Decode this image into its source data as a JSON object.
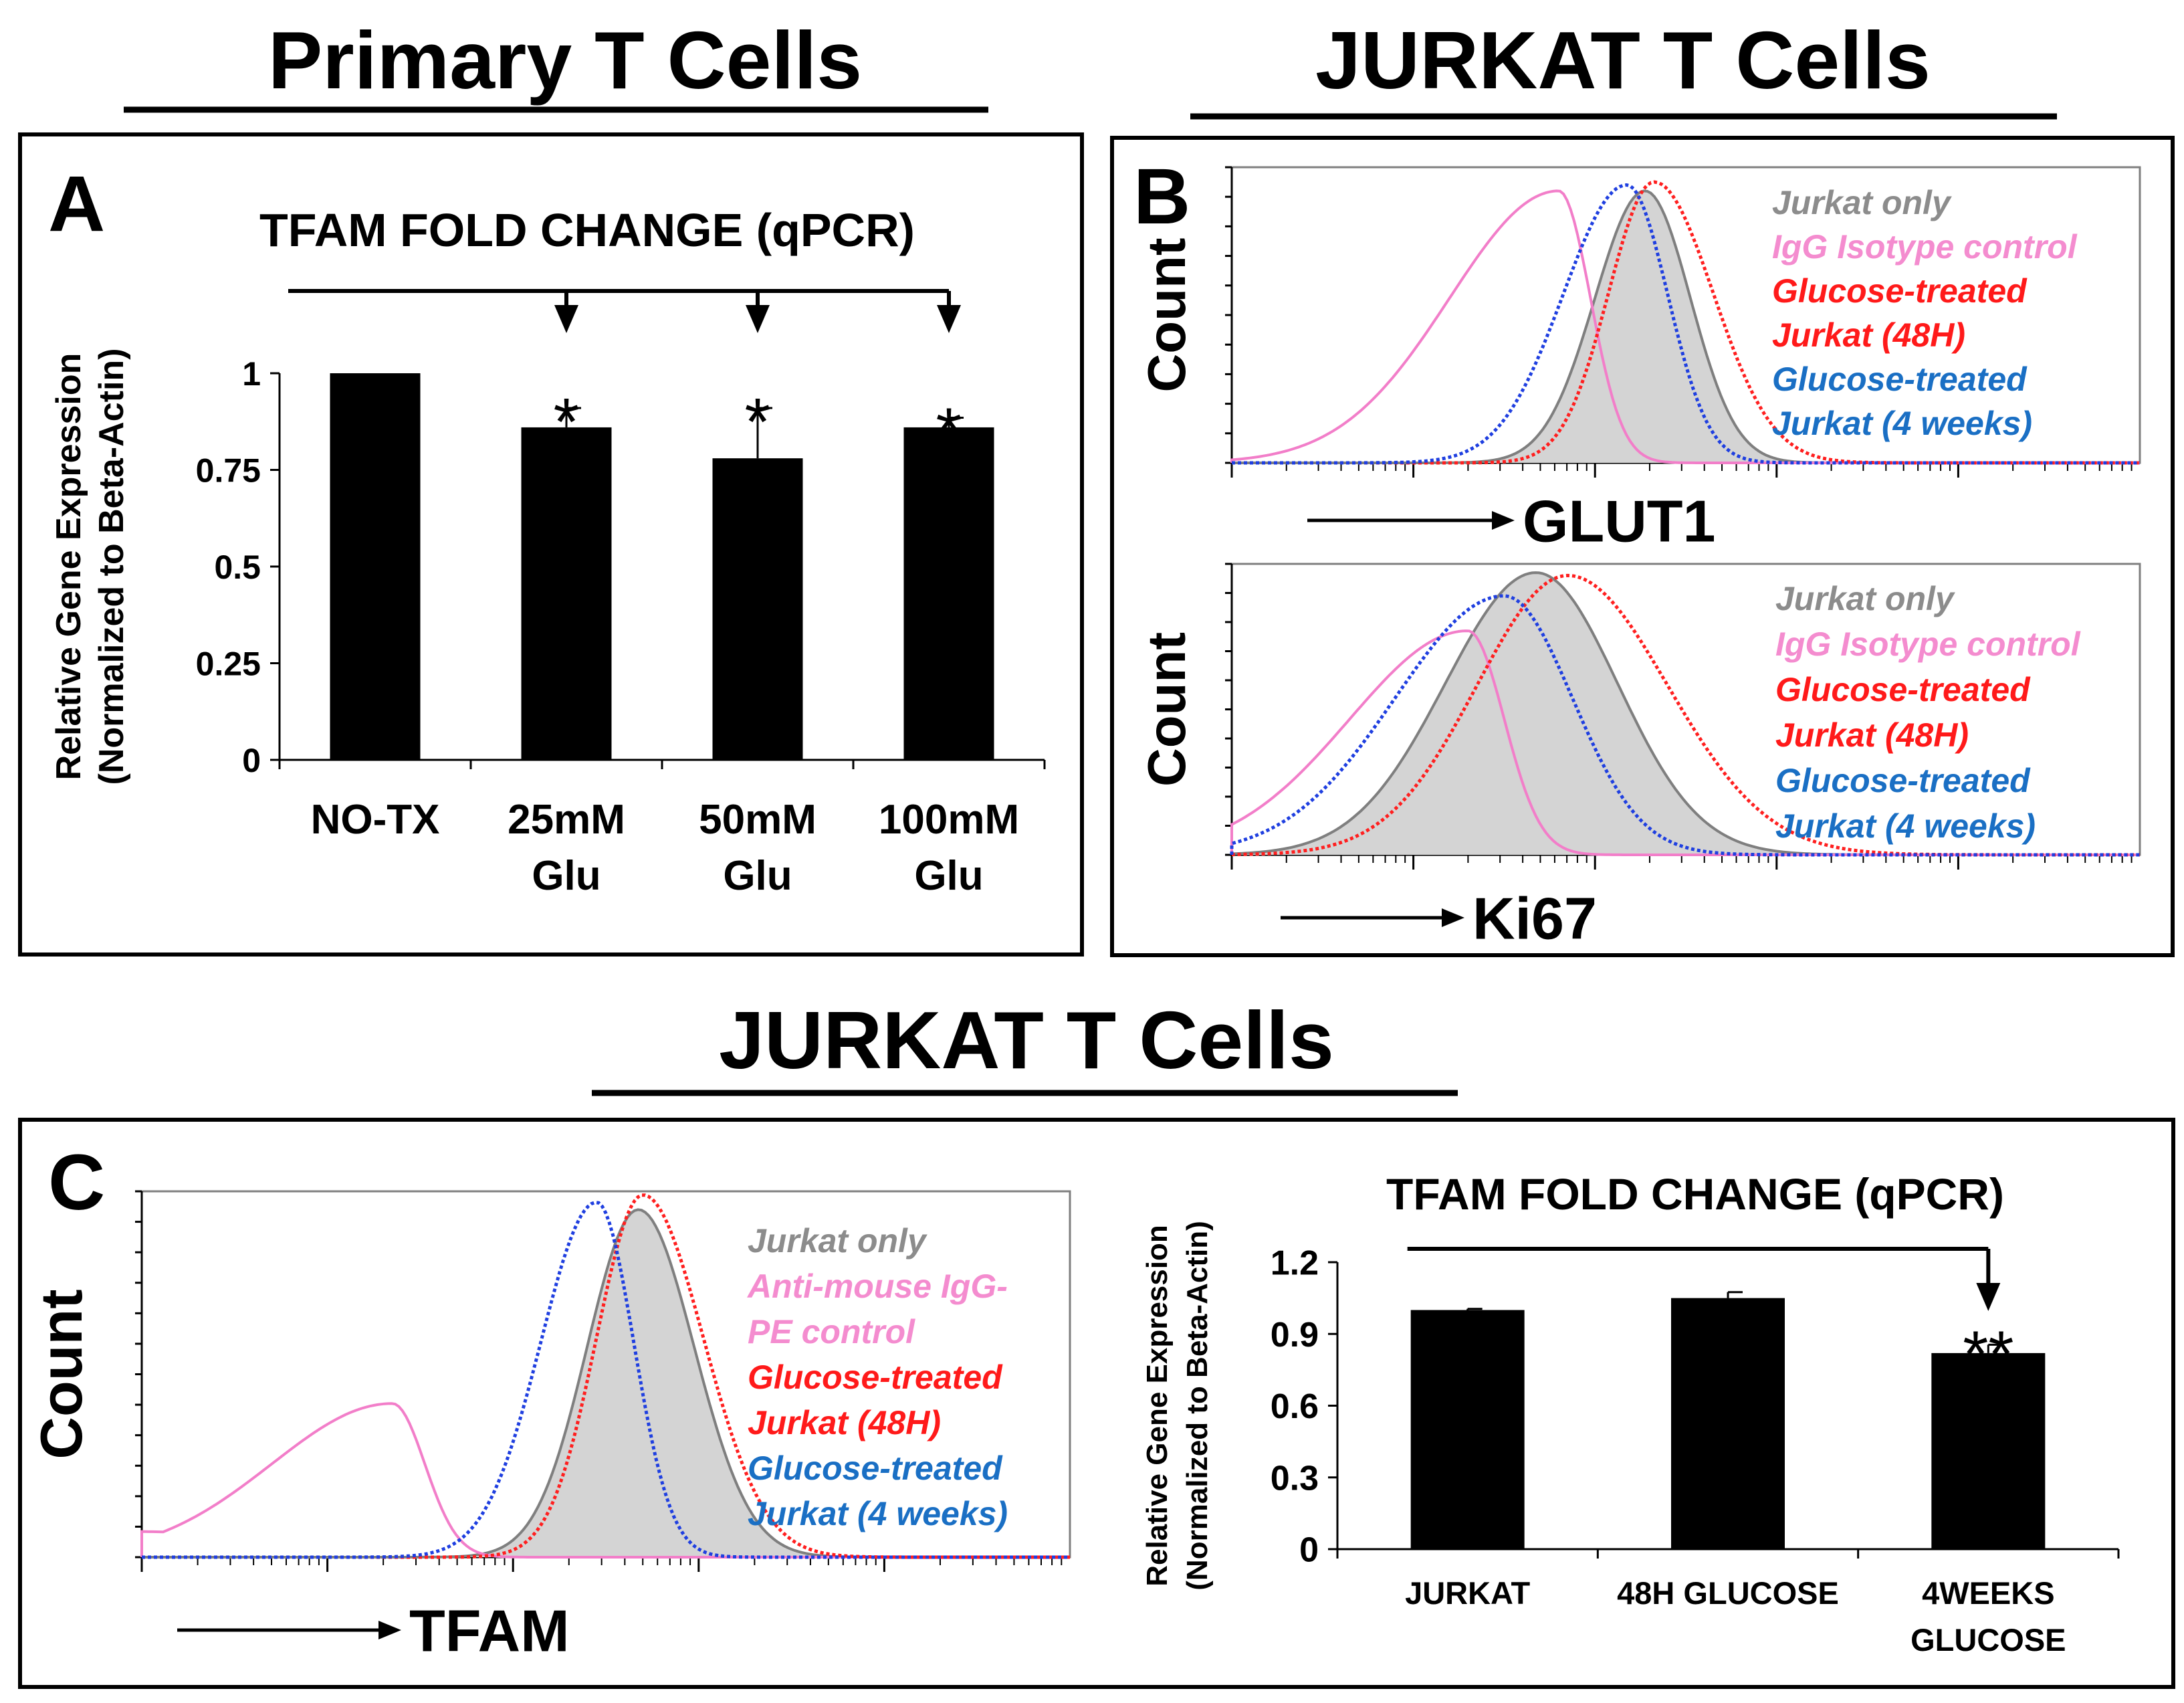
{
  "headings": {
    "primary": "Primary T Cells",
    "jurkat_top": "JURKAT T Cells",
    "jurkat_bottom": "JURKAT T Cells"
  },
  "colors": {
    "black": "#000000",
    "gray_line": "#7f7f7f",
    "gray_fill": "#d4d4d4",
    "pink": "#f27ec9",
    "red": "#ff1f1f",
    "blue": "#1f3fe0",
    "gray_text": "#8c8c8c",
    "pink_text": "#f48ccf",
    "red_text": "#ff1a1a",
    "blue_text": "#1a6fc4"
  },
  "chart_data": [
    {
      "id": "A",
      "panel_label": "A",
      "type": "bar",
      "title": "TFAM FOLD CHANGE (qPCR)",
      "ylabel_line1": "Relative Gene Expression",
      "ylabel_line2": "(Normalized to Beta-Actin)",
      "ylim": [
        0,
        1
      ],
      "yticks": [
        0,
        0.25,
        0.5,
        0.75,
        1
      ],
      "ytick_labels": [
        "0",
        "0.25",
        "0.5",
        "0.75",
        "1"
      ],
      "categories": [
        {
          "line1": "NO-TX",
          "line2": ""
        },
        {
          "line1": "25mM",
          "line2": "Glu"
        },
        {
          "line1": "50mM",
          "line2": "Glu"
        },
        {
          "line1": "100mM",
          "line2": "Glu"
        }
      ],
      "values": [
        1.0,
        0.86,
        0.78,
        0.86
      ],
      "errors": [
        0.0,
        0.05,
        0.13,
        0.025
      ],
      "significance": [
        "",
        "*",
        "*",
        "*"
      ],
      "comparison": {
        "from": 0,
        "to": [
          1,
          2,
          3
        ]
      }
    },
    {
      "id": "B-GLUT1",
      "panel_label": "B",
      "type": "histogram",
      "xlabel": "GLUT1",
      "ylabel": "Count",
      "scale": "log",
      "legend": [
        {
          "text": "Jurkat only",
          "color": "#8c8c8c"
        },
        {
          "text": "IgG Isotype control",
          "color": "#f48ccf"
        },
        {
          "text": "Glucose-treated",
          "color": "#ff1a1a"
        },
        {
          "text": "Jurkat (48H)",
          "color": "#ff1a1a"
        },
        {
          "text": "Glucose-treated",
          "color": "#1a6fc4"
        },
        {
          "text": "Jurkat (4 weeks)",
          "color": "#1a6fc4"
        }
      ],
      "series": [
        {
          "name": "Jurkat only",
          "style": "filled",
          "peak": 0.455,
          "height": 0.92,
          "left_width": 0.055,
          "right_width": 0.05,
          "base": 0.0
        },
        {
          "name": "IgG Isotype control",
          "style": "solid",
          "peak": 0.36,
          "height": 0.92,
          "left_width": 0.12,
          "right_width": 0.035,
          "base": 0.0
        },
        {
          "name": "Glucose-treated Jurkat (48H)",
          "style": "dotted",
          "peak": 0.465,
          "height": 0.95,
          "left_width": 0.05,
          "right_width": 0.065,
          "base": 0.0
        },
        {
          "name": "Glucose-treated Jurkat (4 weeks)",
          "style": "dotted",
          "peak": 0.435,
          "height": 0.94,
          "left_width": 0.07,
          "right_width": 0.045,
          "base": 0.0
        }
      ]
    },
    {
      "id": "B-Ki67",
      "panel_label": "",
      "type": "histogram",
      "xlabel": "Ki67",
      "ylabel": "Count",
      "scale": "log",
      "legend": [
        {
          "text": "Jurkat only",
          "color": "#8c8c8c"
        },
        {
          "text": "IgG Isotype control",
          "color": "#f48ccf"
        },
        {
          "text": "Glucose-treated",
          "color": "#ff1a1a"
        },
        {
          "text": "Jurkat (48H)",
          "color": "#ff1a1a"
        },
        {
          "text": "Glucose-treated",
          "color": "#1a6fc4"
        },
        {
          "text": "Jurkat (4 weeks)",
          "color": "#1a6fc4"
        }
      ],
      "series": [
        {
          "name": "Jurkat only",
          "style": "filled",
          "peak": 0.335,
          "height": 0.97,
          "left_width": 0.1,
          "right_width": 0.09,
          "base": 0.0
        },
        {
          "name": "IgG Isotype control",
          "style": "solid",
          "peak": 0.26,
          "height": 0.77,
          "left_width": 0.13,
          "right_width": 0.04,
          "base": 0.03
        },
        {
          "name": "Glucose-treated Jurkat (48H)",
          "style": "dotted",
          "peak": 0.37,
          "height": 0.96,
          "left_width": 0.1,
          "right_width": 0.11,
          "base": 0.0
        },
        {
          "name": "Glucose-treated Jurkat (4 weeks)",
          "style": "dotted",
          "peak": 0.3,
          "height": 0.89,
          "left_width": 0.12,
          "right_width": 0.075,
          "base": 0.0
        }
      ]
    },
    {
      "id": "C-TFAM-hist",
      "panel_label": "C",
      "type": "histogram",
      "xlabel": "TFAM",
      "ylabel": "Count",
      "scale": "log",
      "legend": [
        {
          "text": "Jurkat only",
          "color": "#8c8c8c"
        },
        {
          "text": "Anti-mouse IgG-",
          "color": "#f48ccf"
        },
        {
          "text": "PE control",
          "color": "#f48ccf"
        },
        {
          "text": "Glucose-treated",
          "color": "#ff1a1a"
        },
        {
          "text": "Jurkat (48H)",
          "color": "#ff1a1a"
        },
        {
          "text": "Glucose-treated",
          "color": "#1a6fc4"
        },
        {
          "text": "Jurkat (4 weeks)",
          "color": "#1a6fc4"
        }
      ],
      "series": [
        {
          "name": "Jurkat only",
          "style": "filled",
          "peak": 0.535,
          "height": 0.95,
          "left_width": 0.055,
          "right_width": 0.06,
          "base": 0.0
        },
        {
          "name": "Anti-mouse IgG-PE control",
          "style": "solid",
          "peak": 0.27,
          "height": 0.42,
          "left_width": 0.13,
          "right_width": 0.035,
          "base": 0.07
        },
        {
          "name": "Glucose-treated Jurkat (48H)",
          "style": "dotted",
          "peak": 0.54,
          "height": 0.99,
          "left_width": 0.05,
          "right_width": 0.065,
          "base": 0.0
        },
        {
          "name": "Glucose-treated Jurkat (4 weeks)",
          "style": "dotted",
          "peak": 0.49,
          "height": 0.97,
          "left_width": 0.06,
          "right_width": 0.04,
          "base": 0.0
        }
      ]
    },
    {
      "id": "C-qPCR",
      "panel_label": "",
      "type": "bar",
      "title": "TFAM FOLD CHANGE (qPCR)",
      "ylabel_line1": "Relative Gene Expression",
      "ylabel_line2": "(Normalized to Beta-Actin)",
      "ylim": [
        0,
        1.2
      ],
      "yticks": [
        0,
        0.3,
        0.6,
        0.9,
        1.2
      ],
      "ytick_labels": [
        "0",
        "0.3",
        "0.6",
        "0.9",
        "1.2"
      ],
      "categories": [
        {
          "line1": "JURKAT",
          "line2": ""
        },
        {
          "line1": "48H GLUCOSE",
          "line2": ""
        },
        {
          "line1": "4WEEKS",
          "line2": "GLUCOSE"
        }
      ],
      "values": [
        1.0,
        1.05,
        0.82
      ],
      "errors": [
        0.005,
        0.025,
        0.035
      ],
      "significance": [
        "",
        "",
        "**"
      ],
      "comparison": {
        "from": 0,
        "to": [
          2
        ]
      }
    }
  ]
}
